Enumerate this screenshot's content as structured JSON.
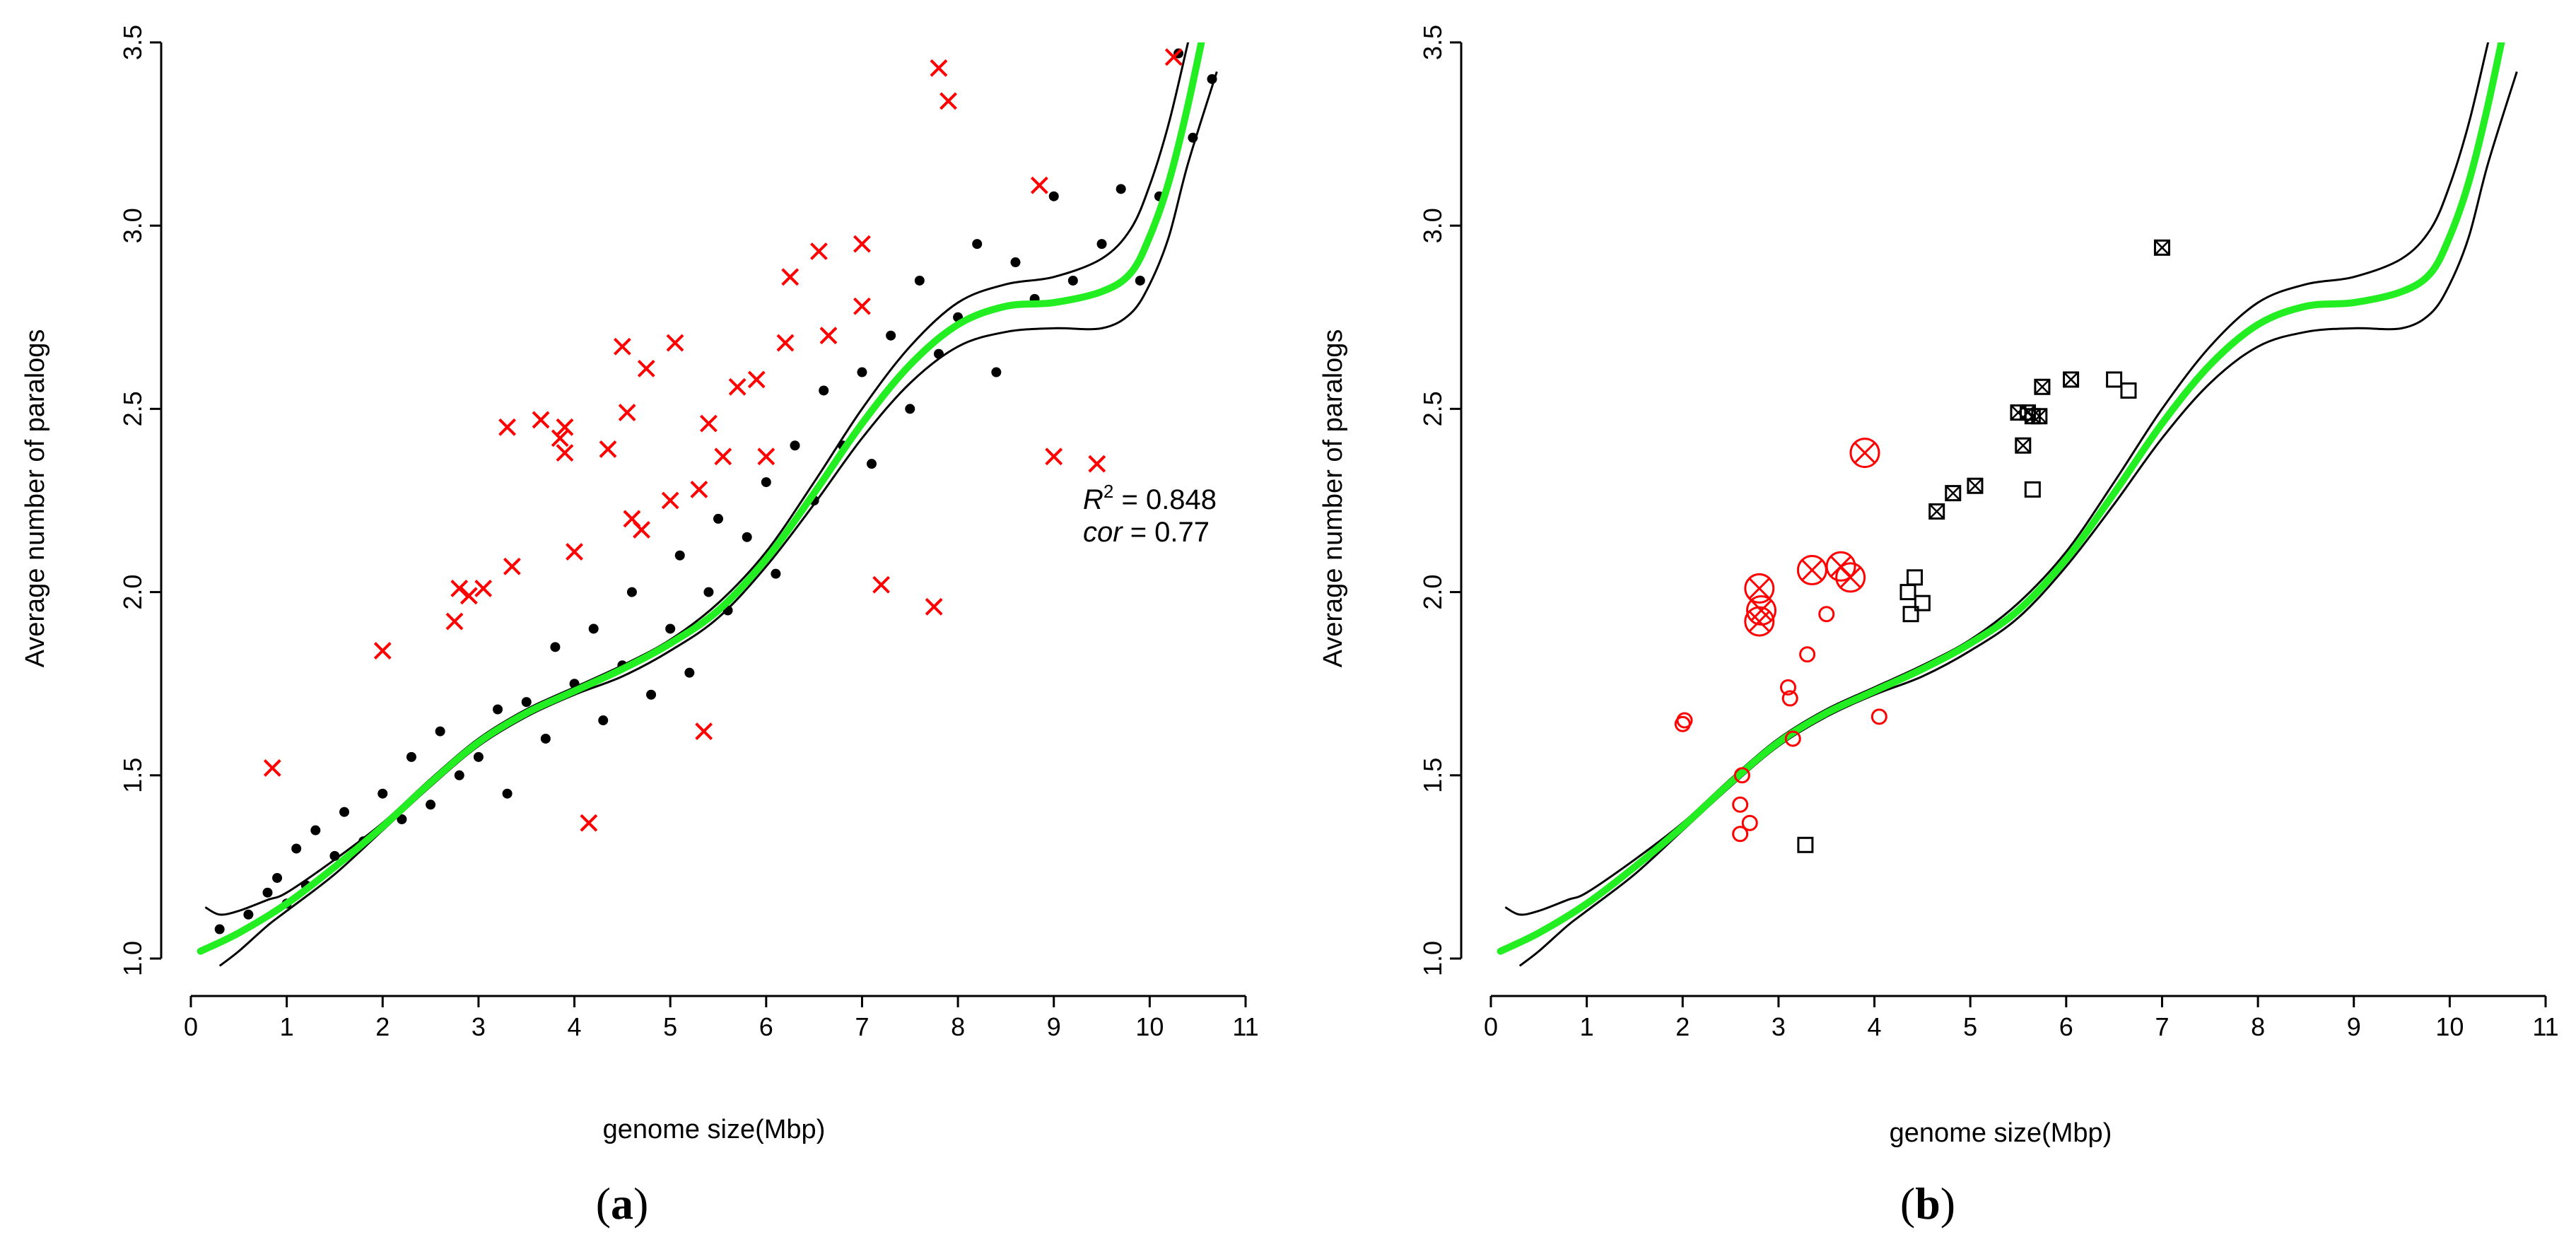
{
  "figure": {
    "colors": {
      "fit": "#22ee22",
      "band": "#000000",
      "red": "#ff0000",
      "black": "#000000"
    }
  },
  "chart_data": [
    {
      "type": "scatter",
      "panel_label": "a",
      "xlabel": "genome size(Mbp)",
      "ylabel": "Average number of paralogs",
      "xlim": [
        0,
        11
      ],
      "ylim": [
        1.0,
        3.5
      ],
      "x_ticks": [
        "0",
        "1",
        "2",
        "3",
        "4",
        "5",
        "6",
        "7",
        "8",
        "9",
        "10",
        "11"
      ],
      "y_ticks": [
        "1.0",
        "1.5",
        "2.0",
        "2.5",
        "3.0",
        "3.5"
      ],
      "annotation": {
        "r2_label": "R",
        "r2_sup": "2",
        "r2_value": " = 0.848",
        "cor_label": "cor",
        "cor_value": " = 0.77"
      },
      "fit_curve": {
        "x": [
          0.1,
          0.5,
          1,
          1.5,
          2,
          2.5,
          3,
          3.5,
          4,
          4.5,
          5,
          5.5,
          6,
          6.5,
          7,
          7.5,
          8,
          8.5,
          9,
          9.5,
          9.8,
          10,
          10.2,
          10.4,
          10.65
        ],
        "y": [
          1.02,
          1.07,
          1.15,
          1.25,
          1.36,
          1.48,
          1.59,
          1.67,
          1.73,
          1.79,
          1.86,
          1.95,
          2.09,
          2.27,
          2.46,
          2.62,
          2.73,
          2.78,
          2.79,
          2.82,
          2.87,
          2.97,
          3.12,
          3.33,
          3.64
        ]
      },
      "band_upper": {
        "x": [
          0.15,
          0.3,
          0.5,
          0.8,
          1,
          1.5,
          2,
          2.5,
          3,
          3.5,
          4,
          4.5,
          5,
          5.5,
          6,
          6.5,
          7,
          7.5,
          8,
          8.5,
          9,
          9.5,
          9.8,
          10,
          10.2,
          10.4,
          10.6
        ],
        "y": [
          1.14,
          1.12,
          1.13,
          1.16,
          1.18,
          1.27,
          1.37,
          1.49,
          1.6,
          1.68,
          1.74,
          1.8,
          1.87,
          1.97,
          2.11,
          2.3,
          2.5,
          2.67,
          2.79,
          2.84,
          2.86,
          2.91,
          2.99,
          3.11,
          3.28,
          3.5,
          3.72
        ]
      },
      "band_lower": {
        "x": [
          0.3,
          0.5,
          0.8,
          1,
          1.5,
          2,
          2.5,
          3,
          3.5,
          4,
          4.5,
          5,
          5.5,
          6,
          6.5,
          7,
          7.5,
          8,
          8.5,
          9,
          9.5,
          9.8,
          10,
          10.2,
          10.4,
          10.7
        ],
        "y": [
          0.98,
          1.02,
          1.09,
          1.13,
          1.23,
          1.35,
          1.47,
          1.58,
          1.66,
          1.72,
          1.77,
          1.84,
          1.93,
          2.07,
          2.24,
          2.42,
          2.57,
          2.67,
          2.71,
          2.72,
          2.72,
          2.76,
          2.84,
          2.97,
          3.17,
          3.42
        ]
      },
      "series": [
        {
          "name": "genomes (black dots)",
          "marker": "dot",
          "color": "#000000",
          "points": [
            [
              0.3,
              1.08
            ],
            [
              0.6,
              1.12
            ],
            [
              0.8,
              1.18
            ],
            [
              0.9,
              1.22
            ],
            [
              1.0,
              1.15
            ],
            [
              1.1,
              1.3
            ],
            [
              1.2,
              1.2
            ],
            [
              1.3,
              1.35
            ],
            [
              1.5,
              1.28
            ],
            [
              1.6,
              1.4
            ],
            [
              1.8,
              1.32
            ],
            [
              2.0,
              1.45
            ],
            [
              2.2,
              1.38
            ],
            [
              2.3,
              1.55
            ],
            [
              2.5,
              1.42
            ],
            [
              2.6,
              1.62
            ],
            [
              2.8,
              1.5
            ],
            [
              3.0,
              1.55
            ],
            [
              3.2,
              1.68
            ],
            [
              3.3,
              1.45
            ],
            [
              3.5,
              1.7
            ],
            [
              3.7,
              1.6
            ],
            [
              3.8,
              1.85
            ],
            [
              4.0,
              1.75
            ],
            [
              4.2,
              1.9
            ],
            [
              4.3,
              1.65
            ],
            [
              4.5,
              1.8
            ],
            [
              4.6,
              2.0
            ],
            [
              4.8,
              1.72
            ],
            [
              5.0,
              1.9
            ],
            [
              5.1,
              2.1
            ],
            [
              5.2,
              1.78
            ],
            [
              5.4,
              2.0
            ],
            [
              5.5,
              2.2
            ],
            [
              5.6,
              1.95
            ],
            [
              5.8,
              2.15
            ],
            [
              6.0,
              2.3
            ],
            [
              6.1,
              2.05
            ],
            [
              6.3,
              2.4
            ],
            [
              6.5,
              2.25
            ],
            [
              6.6,
              2.55
            ],
            [
              6.8,
              2.4
            ],
            [
              7.0,
              2.6
            ],
            [
              7.1,
              2.35
            ],
            [
              7.3,
              2.7
            ],
            [
              7.5,
              2.5
            ],
            [
              7.6,
              2.85
            ],
            [
              7.8,
              2.65
            ],
            [
              8.0,
              2.75
            ],
            [
              8.2,
              2.95
            ],
            [
              8.4,
              2.6
            ],
            [
              8.6,
              2.9
            ],
            [
              8.8,
              2.8
            ],
            [
              9.0,
              3.08
            ],
            [
              9.2,
              2.85
            ],
            [
              9.5,
              2.95
            ],
            [
              9.7,
              3.1
            ],
            [
              9.9,
              2.85
            ],
            [
              10.1,
              3.08
            ],
            [
              10.3,
              3.47
            ],
            [
              10.45,
              3.24
            ],
            [
              10.65,
              3.4
            ]
          ]
        },
        {
          "name": "outliers (red crosses)",
          "marker": "x",
          "color": "#ff0000",
          "points": [
            [
              0.85,
              1.52
            ],
            [
              2.0,
              1.84
            ],
            [
              2.75,
              1.92
            ],
            [
              2.8,
              2.01
            ],
            [
              2.9,
              1.99
            ],
            [
              3.05,
              2.01
            ],
            [
              3.35,
              2.07
            ],
            [
              3.3,
              2.45
            ],
            [
              3.65,
              2.47
            ],
            [
              3.85,
              2.42
            ],
            [
              3.9,
              2.45
            ],
            [
              3.9,
              2.38
            ],
            [
              4.0,
              2.11
            ],
            [
              4.15,
              1.37
            ],
            [
              4.35,
              2.39
            ],
            [
              4.5,
              2.67
            ],
            [
              4.55,
              2.49
            ],
            [
              4.75,
              2.61
            ],
            [
              4.6,
              2.2
            ],
            [
              4.7,
              2.17
            ],
            [
              5.0,
              2.25
            ],
            [
              5.05,
              2.68
            ],
            [
              5.3,
              2.28
            ],
            [
              5.35,
              1.62
            ],
            [
              5.4,
              2.46
            ],
            [
              5.55,
              2.37
            ],
            [
              5.7,
              2.56
            ],
            [
              5.9,
              2.58
            ],
            [
              6.0,
              2.37
            ],
            [
              6.2,
              2.68
            ],
            [
              6.25,
              2.86
            ],
            [
              6.55,
              2.93
            ],
            [
              6.65,
              2.7
            ],
            [
              7.0,
              2.95
            ],
            [
              7.0,
              2.78
            ],
            [
              7.2,
              2.02
            ],
            [
              7.75,
              1.96
            ],
            [
              7.8,
              3.43
            ],
            [
              7.9,
              3.34
            ],
            [
              8.85,
              3.11
            ],
            [
              9.0,
              2.37
            ],
            [
              9.45,
              2.35
            ],
            [
              10.25,
              3.46
            ]
          ]
        }
      ]
    },
    {
      "type": "scatter",
      "panel_label": "b",
      "xlabel": "genome size(Mbp)",
      "ylabel": "Average number of paralogs",
      "xlim": [
        0,
        11
      ],
      "ylim": [
        1.0,
        3.5
      ],
      "x_ticks": [
        "0",
        "1",
        "2",
        "3",
        "4",
        "5",
        "6",
        "7",
        "8",
        "9",
        "10",
        "11"
      ],
      "y_ticks": [
        "1.0",
        "1.5",
        "2.0",
        "2.5",
        "3.0",
        "3.5"
      ],
      "fit_curve": {
        "x": [
          0.1,
          0.5,
          1,
          1.5,
          2,
          2.5,
          3,
          3.5,
          4,
          4.5,
          5,
          5.5,
          6,
          6.5,
          7,
          7.5,
          8,
          8.5,
          9,
          9.5,
          9.8,
          10,
          10.2,
          10.4,
          10.65
        ],
        "y": [
          1.02,
          1.07,
          1.15,
          1.25,
          1.36,
          1.48,
          1.59,
          1.67,
          1.73,
          1.79,
          1.86,
          1.95,
          2.09,
          2.27,
          2.46,
          2.62,
          2.73,
          2.78,
          2.79,
          2.82,
          2.87,
          2.97,
          3.12,
          3.33,
          3.64
        ]
      },
      "band_upper": {
        "x": [
          0.15,
          0.3,
          0.5,
          0.8,
          1,
          1.5,
          2,
          2.5,
          3,
          3.5,
          4,
          4.5,
          5,
          5.5,
          6,
          6.5,
          7,
          7.5,
          8,
          8.5,
          9,
          9.5,
          9.8,
          10,
          10.2,
          10.4,
          10.6
        ],
        "y": [
          1.14,
          1.12,
          1.13,
          1.16,
          1.18,
          1.27,
          1.37,
          1.49,
          1.6,
          1.68,
          1.74,
          1.8,
          1.87,
          1.97,
          2.11,
          2.3,
          2.5,
          2.67,
          2.79,
          2.84,
          2.86,
          2.91,
          2.99,
          3.11,
          3.28,
          3.5,
          3.72
        ]
      },
      "band_lower": {
        "x": [
          0.3,
          0.5,
          0.8,
          1,
          1.5,
          2,
          2.5,
          3,
          3.5,
          4,
          4.5,
          5,
          5.5,
          6,
          6.5,
          7,
          7.5,
          8,
          8.5,
          9,
          9.5,
          9.8,
          10,
          10.2,
          10.4,
          10.7
        ],
        "y": [
          0.98,
          1.02,
          1.09,
          1.13,
          1.23,
          1.35,
          1.47,
          1.58,
          1.66,
          1.72,
          1.77,
          1.84,
          1.93,
          2.07,
          2.24,
          2.42,
          2.57,
          2.67,
          2.71,
          2.72,
          2.72,
          2.76,
          2.84,
          2.97,
          3.17,
          3.42
        ]
      },
      "series": [
        {
          "name": "red circles",
          "marker": "circle",
          "color": "#ff0000",
          "points": [
            [
              2.0,
              1.64
            ],
            [
              2.02,
              1.65
            ],
            [
              2.6,
              1.42
            ],
            [
              2.6,
              1.34
            ],
            [
              2.62,
              1.5
            ],
            [
              2.7,
              1.37
            ],
            [
              3.1,
              1.74
            ],
            [
              3.12,
              1.71
            ],
            [
              3.15,
              1.6
            ],
            [
              3.3,
              1.83
            ],
            [
              3.5,
              1.94
            ],
            [
              4.05,
              1.66
            ]
          ]
        },
        {
          "name": "red circled crosses",
          "marker": "circle-x",
          "color": "#ff0000",
          "points": [
            [
              2.8,
              2.01
            ],
            [
              2.8,
              1.92
            ],
            [
              2.82,
              1.95
            ],
            [
              3.35,
              2.06
            ],
            [
              3.65,
              2.07
            ],
            [
              3.75,
              2.04
            ],
            [
              3.9,
              2.38
            ]
          ]
        },
        {
          "name": "black squares",
          "marker": "square",
          "color": "#000000",
          "points": [
            [
              3.28,
              1.31
            ],
            [
              4.35,
              2.0
            ],
            [
              4.38,
              1.94
            ],
            [
              4.42,
              2.04
            ],
            [
              4.5,
              1.97
            ],
            [
              5.65,
              2.28
            ],
            [
              6.5,
              2.58
            ],
            [
              6.65,
              2.55
            ]
          ]
        },
        {
          "name": "black crossed squares",
          "marker": "square-x",
          "color": "#000000",
          "points": [
            [
              4.65,
              2.22
            ],
            [
              4.82,
              2.27
            ],
            [
              5.05,
              2.29
            ],
            [
              5.5,
              2.49
            ],
            [
              5.55,
              2.4
            ],
            [
              5.6,
              2.49
            ],
            [
              5.65,
              2.48
            ],
            [
              5.72,
              2.48
            ],
            [
              5.75,
              2.56
            ],
            [
              6.05,
              2.58
            ],
            [
              7.0,
              2.94
            ]
          ]
        }
      ]
    }
  ]
}
